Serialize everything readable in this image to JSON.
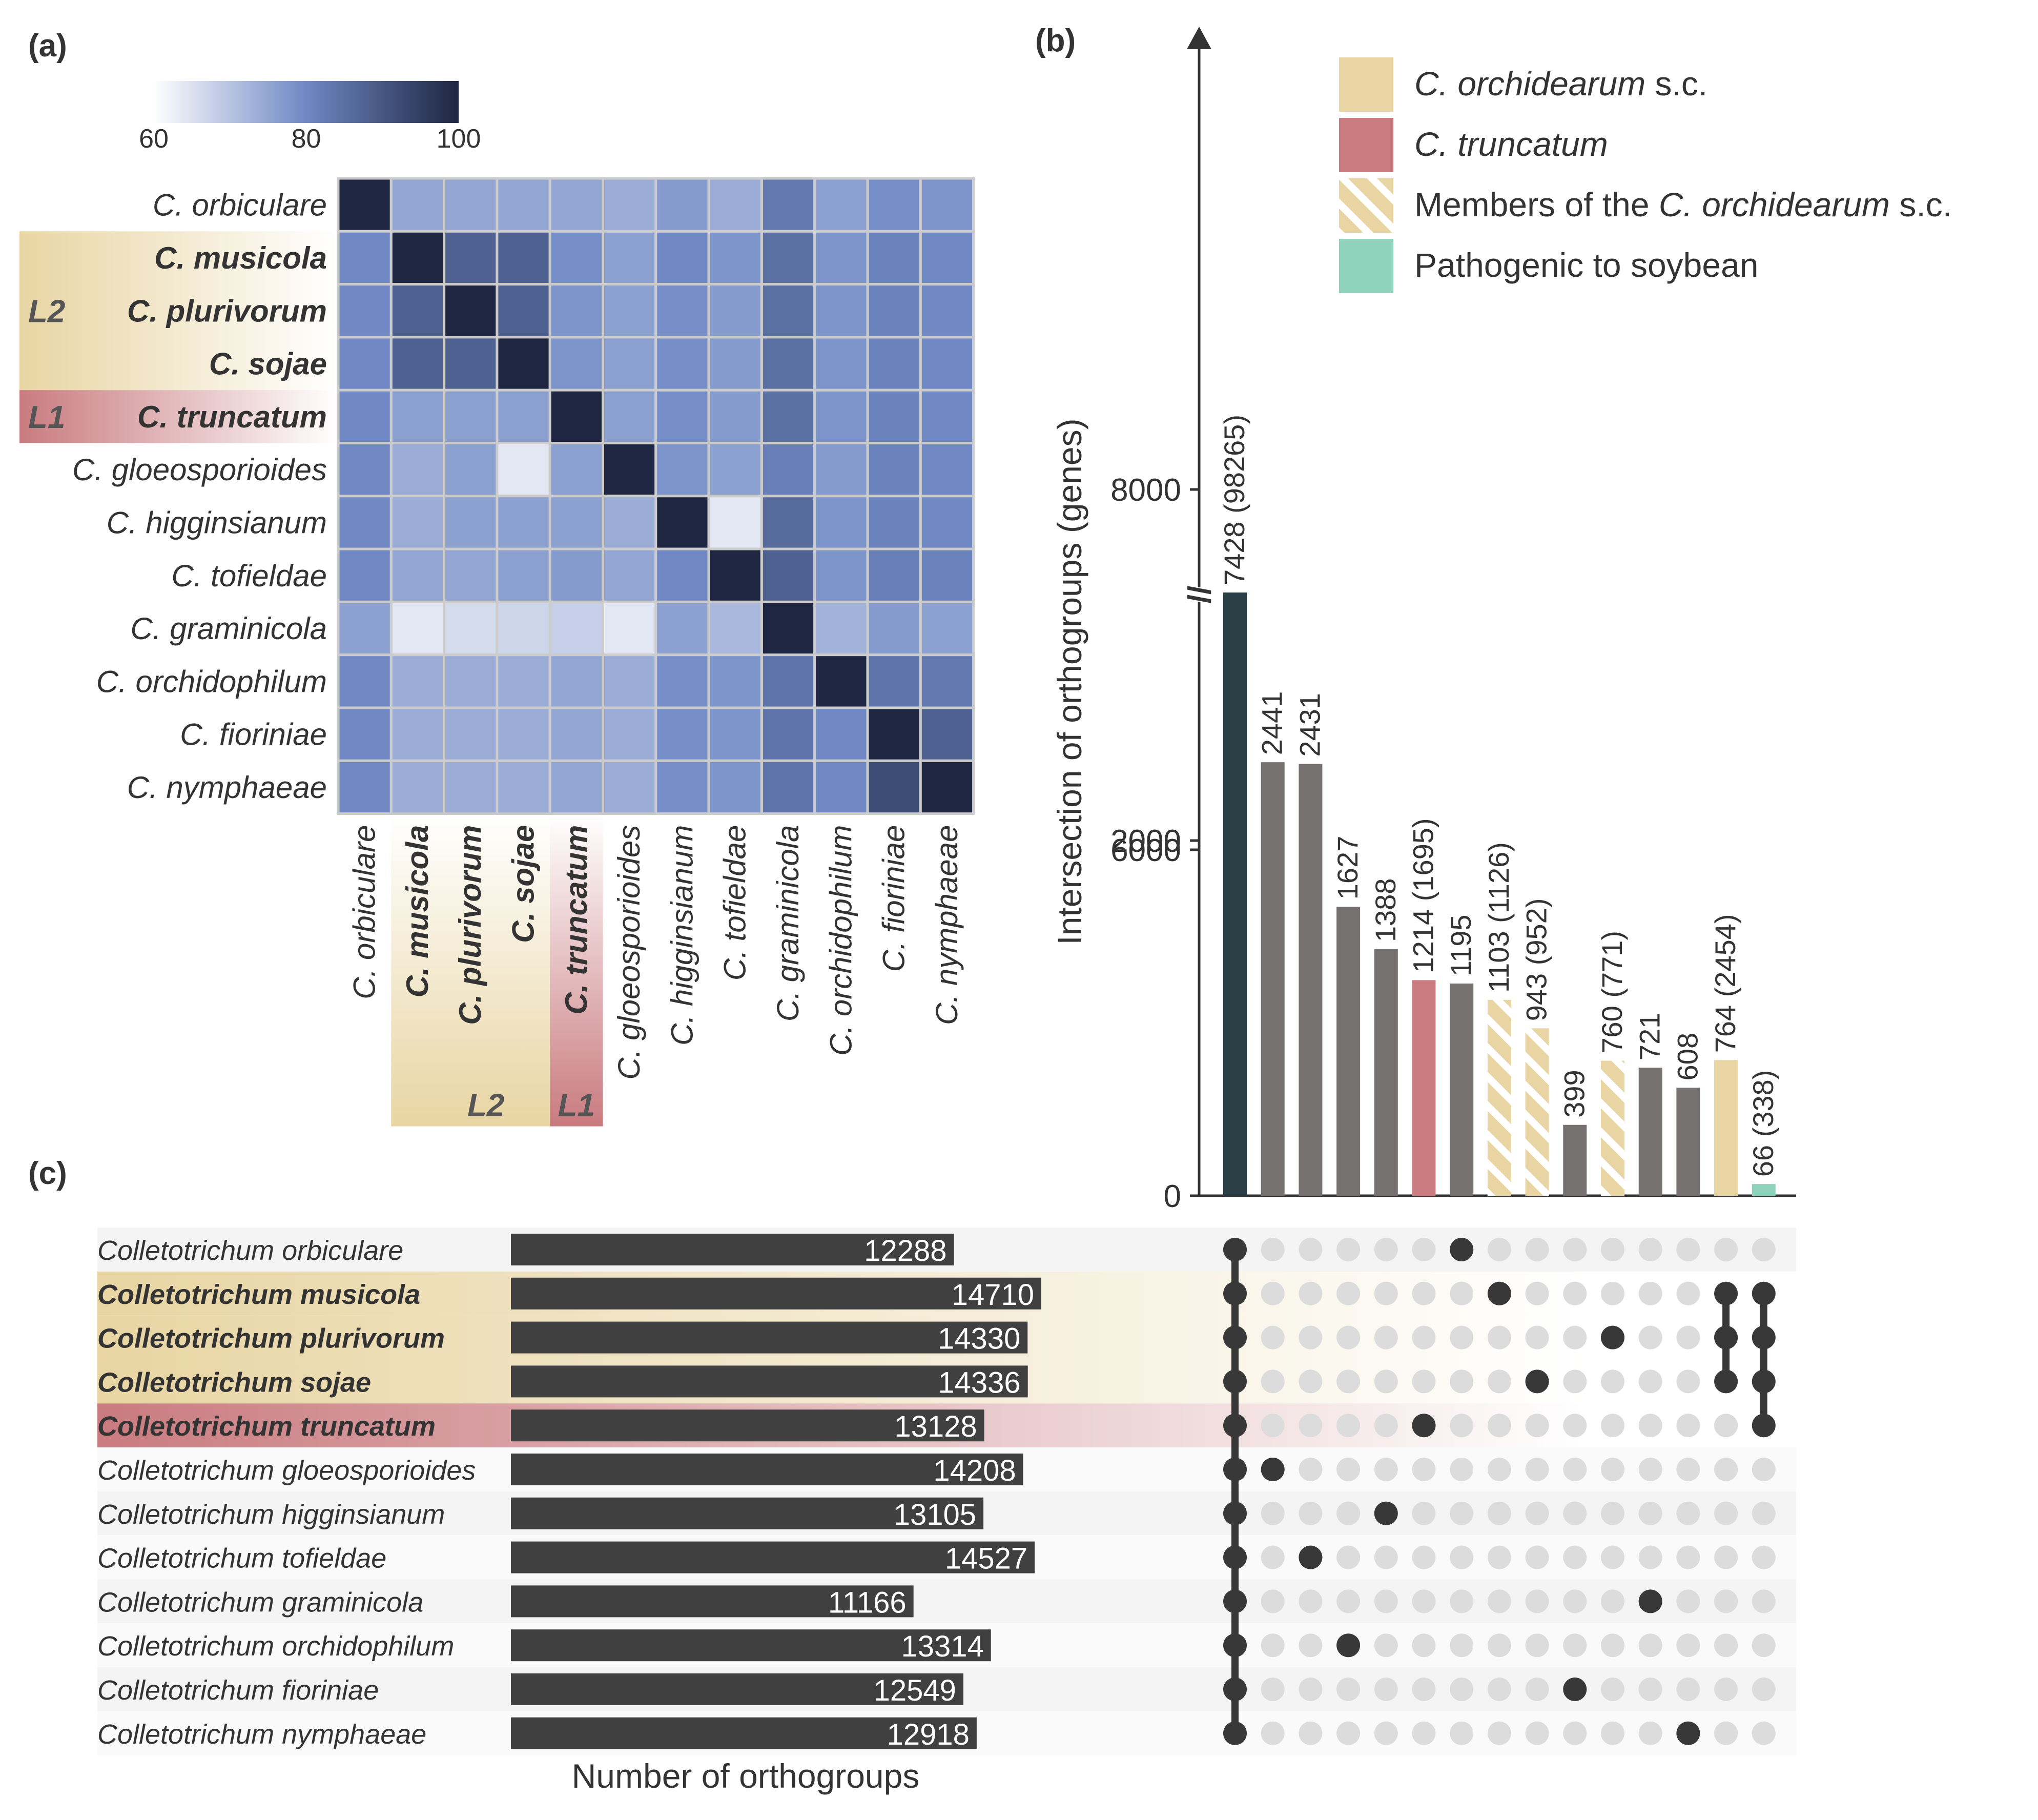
{
  "panels": {
    "a": "(a)",
    "b": "(b)",
    "c": "(c)"
  },
  "colors": {
    "orchid": "#E8D5A3",
    "orchid_light": "#F7EFD9",
    "trunc": "#C97B7F",
    "trunc_light": "#E9C5C7",
    "soy": "#8FD3BC",
    "gray_bar": "#767171",
    "dark_bar": "#2C3E46",
    "hbar": "#404040",
    "dot_on": "#383838",
    "dot_off": "#DCDCDC",
    "grid_line": "#CCCCCC",
    "heat_low": "#FFFFFF",
    "heat_mid": "#6F88C4",
    "heat_high": "#1E2641"
  },
  "chart_data": [
    {
      "type": "heatmap",
      "panel": "(a)",
      "colorbar": {
        "min": 60,
        "max": 100,
        "ticks": [
          "60",
          "80",
          "100"
        ]
      },
      "row_labels": [
        "C. orbiculare",
        "C. musicola",
        "C. plurivorum",
        "C. sojae",
        "C. truncatum",
        "C. gloeosporioides",
        "C. higginsianum",
        "C. tofieldae",
        "C. graminicola",
        "C. orchidophilum",
        "C. fioriniae",
        "C. nymphaeae"
      ],
      "col_labels": [
        "C. orbiculare",
        "C. musicola",
        "C. plurivorum",
        "C. sojae",
        "C. truncatum",
        "C. gloeosporioides",
        "C. higginsianum",
        "C. tofieldae",
        "C. graminicola",
        "C. orchidophilum",
        "C. fioriniae",
        "C. nymphaeae"
      ],
      "bold_labels": [
        "C. musicola",
        "C. plurivorum",
        "C. sojae",
        "C. truncatum"
      ],
      "group_labels": {
        "L2": "L2",
        "L1": "L1"
      },
      "values": [
        [
          100,
          75,
          75,
          75,
          75,
          74,
          77,
          74,
          83,
          76,
          79,
          78
        ],
        [
          80,
          100,
          88,
          88,
          79,
          76,
          80,
          78,
          85,
          78,
          81,
          80
        ],
        [
          80,
          88,
          100,
          88,
          78,
          76,
          79,
          77,
          85,
          78,
          81,
          80
        ],
        [
          80,
          88,
          88,
          100,
          78,
          76,
          79,
          77,
          85,
          78,
          81,
          80
        ],
        [
          80,
          76,
          76,
          76,
          100,
          76,
          79,
          77,
          85,
          78,
          81,
          80
        ],
        [
          80,
          74,
          76,
          64,
          76,
          100,
          78,
          76,
          82,
          77,
          81,
          80
        ],
        [
          80,
          74,
          76,
          76,
          76,
          74,
          100,
          64,
          86,
          78,
          81,
          80
        ],
        [
          80,
          75,
          75,
          76,
          77,
          75,
          80,
          100,
          88,
          78,
          82,
          81
        ],
        [
          76,
          64,
          66,
          67,
          68,
          64,
          76,
          72,
          100,
          73,
          77,
          76
        ],
        [
          80,
          74,
          74,
          74,
          75,
          74,
          79,
          78,
          84,
          100,
          84,
          83
        ],
        [
          80,
          74,
          74,
          74,
          75,
          74,
          79,
          78,
          84,
          80,
          100,
          88
        ],
        [
          80,
          74,
          74,
          74,
          75,
          74,
          79,
          78,
          84,
          80,
          92,
          100
        ]
      ]
    },
    {
      "type": "bar",
      "panel": "(b)",
      "ylabel": "Intersection of orthogroups (genes)",
      "yticks": [
        "0",
        "2000",
        "6000",
        "8000"
      ],
      "axis_break": "//",
      "bars": [
        {
          "value": 7428,
          "label": "7428 (98265)",
          "group": "dark"
        },
        {
          "value": 2441,
          "label": "2441",
          "group": "gray"
        },
        {
          "value": 2431,
          "label": "2431",
          "group": "gray"
        },
        {
          "value": 1627,
          "label": "1627",
          "group": "gray"
        },
        {
          "value": 1388,
          "label": "1388",
          "group": "gray"
        },
        {
          "value": 1214,
          "label": "1214 (1695)",
          "group": "trunc"
        },
        {
          "value": 1195,
          "label": "1195",
          "group": "gray"
        },
        {
          "value": 1103,
          "label": "1103 (1126)",
          "group": "member"
        },
        {
          "value": 943,
          "label": "943 (952)",
          "group": "member"
        },
        {
          "value": 399,
          "label": "399",
          "group": "gray"
        },
        {
          "value": 760,
          "label": "760 (771)",
          "group": "member"
        },
        {
          "value": 721,
          "label": "721",
          "group": "gray"
        },
        {
          "value": 608,
          "label": "608",
          "group": "gray"
        },
        {
          "value": 764,
          "label": "764 (2454)",
          "group": "orchid"
        },
        {
          "value": 66,
          "label": "66 (338)",
          "group": "soy"
        }
      ],
      "legend": [
        {
          "key": "orchid",
          "pre": "",
          "italic": "C. orchidearum",
          "post": " s.c."
        },
        {
          "key": "trunc",
          "pre": "",
          "italic": "C. truncatum",
          "post": ""
        },
        {
          "key": "member",
          "pre": "Members of the ",
          "italic": "C. orchidearum",
          "post": " s.c."
        },
        {
          "key": "soy",
          "pre": "Pathogenic to soybean",
          "italic": "",
          "post": ""
        }
      ]
    },
    {
      "type": "upset",
      "panel": "(c)",
      "xlabel": "Number of orthogroups",
      "species": [
        {
          "name": "Colletotrichum orbiculare",
          "count": 12288,
          "label": "12288",
          "bold": false,
          "band": "none"
        },
        {
          "name": "Colletotrichum musicola",
          "count": 14710,
          "label": "14710",
          "bold": true,
          "band": "orchid"
        },
        {
          "name": "Colletotrichum plurivorum",
          "count": 14330,
          "label": "14330",
          "bold": true,
          "band": "orchid"
        },
        {
          "name": "Colletotrichum sojae",
          "count": 14336,
          "label": "14336",
          "bold": true,
          "band": "orchid"
        },
        {
          "name": "Colletotrichum truncatum",
          "count": 13128,
          "label": "13128",
          "bold": true,
          "band": "trunc"
        },
        {
          "name": "Colletotrichum gloeosporioides",
          "count": 14208,
          "label": "14208",
          "bold": false,
          "band": "none"
        },
        {
          "name": "Colletotrichum higginsianum",
          "count": 13105,
          "label": "13105",
          "bold": false,
          "band": "none"
        },
        {
          "name": "Colletotrichum tofieldae",
          "count": 14527,
          "label": "14527",
          "bold": false,
          "band": "none"
        },
        {
          "name": "Colletotrichum graminicola",
          "count": 11166,
          "label": "11166",
          "bold": false,
          "band": "none"
        },
        {
          "name": "Colletotrichum orchidophilum",
          "count": 13314,
          "label": "13314",
          "bold": false,
          "band": "none"
        },
        {
          "name": "Colletotrichum fioriniae",
          "count": 12549,
          "label": "12549",
          "bold": false,
          "band": "none"
        },
        {
          "name": "Colletotrichum nymphaeae",
          "count": 12918,
          "label": "12918",
          "bold": false,
          "band": "none"
        }
      ],
      "sets": [
        [
          0,
          1,
          2,
          3,
          4,
          5,
          6,
          7,
          8,
          9,
          10,
          11
        ],
        [
          5
        ],
        [
          7
        ],
        [
          9
        ],
        [
          6
        ],
        [
          4
        ],
        [
          0
        ],
        [
          1
        ],
        [
          3
        ],
        [
          10
        ],
        [
          2
        ],
        [
          8
        ],
        [
          11
        ],
        [
          1,
          2,
          3
        ],
        [
          1,
          2,
          3,
          4
        ]
      ]
    }
  ]
}
